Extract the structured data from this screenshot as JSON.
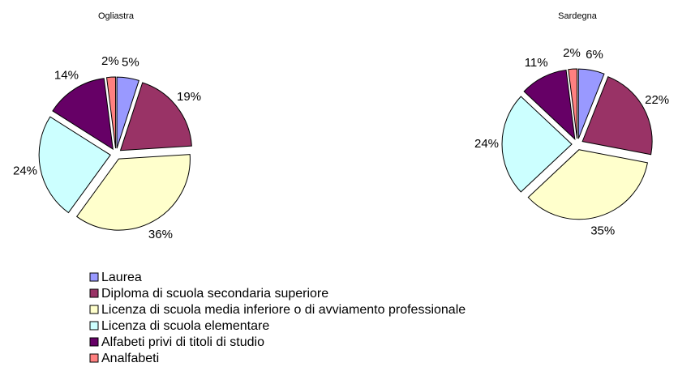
{
  "chart_data": [
    {
      "type": "pie",
      "title": "Ogliastra",
      "categories": [
        "Laurea",
        "Diploma di scuola secondaria superiore",
        "Licenza di scuola media inferiore o di avviamento professionale",
        "Licenza di scuola elementare",
        "Alfabeti privi di titoli di studio",
        "Analfabeti"
      ],
      "values": [
        5,
        19,
        36,
        24,
        14,
        2
      ],
      "value_labels": [
        "5%",
        "19%",
        "36%",
        "24%",
        "14%",
        "2%"
      ],
      "colors": [
        "#9999ff",
        "#993366",
        "#ffffcc",
        "#ccffff",
        "#660066",
        "#ff8080"
      ]
    },
    {
      "type": "pie",
      "title": "Sardegna",
      "categories": [
        "Laurea",
        "Diploma di scuola secondaria superiore",
        "Licenza di scuola media inferiore o di avviamento professionale",
        "Licenza di scuola elementare",
        "Alfabeti privi di titoli di studio",
        "Analfabeti"
      ],
      "values": [
        6,
        22,
        35,
        24,
        11,
        2
      ],
      "value_labels": [
        "6%",
        "22%",
        "35%",
        "24%",
        "11%",
        "2%"
      ],
      "colors": [
        "#9999ff",
        "#993366",
        "#ffffcc",
        "#ccffff",
        "#660066",
        "#ff8080"
      ]
    }
  ]
}
